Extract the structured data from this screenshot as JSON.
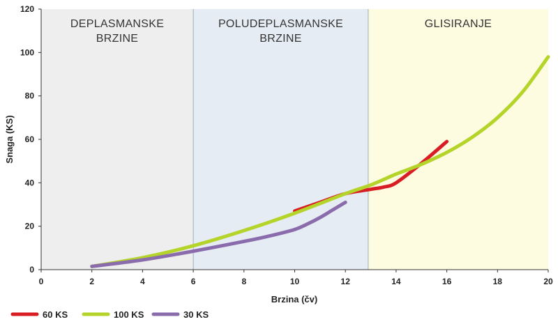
{
  "chart_data": {
    "type": "line",
    "xlabel": "Brzina (čv)",
    "ylabel": "Snaga (KS)",
    "xlim": [
      0,
      20
    ],
    "ylim": [
      0,
      120
    ],
    "xticks": [
      0,
      2,
      4,
      6,
      8,
      10,
      12,
      14,
      16,
      18,
      20
    ],
    "yticks": [
      0,
      20,
      40,
      60,
      80,
      100,
      120
    ],
    "grid": false,
    "legend_position": "bottom-left",
    "regions": [
      {
        "label_lines": [
          "DEPLASMANSKE",
          "BRZINE"
        ],
        "x_from": 0,
        "x_to": 6,
        "color": "#eeeeee"
      },
      {
        "label_lines": [
          "POLUDEPLASMANSKE",
          "BRZINE"
        ],
        "x_from": 6,
        "x_to": 12.9,
        "color": "#e6ecf3"
      },
      {
        "label_lines": [
          "GLISIRANJE"
        ],
        "x_from": 12.9,
        "x_to": 20,
        "color": "#fdfbe0"
      }
    ],
    "series": [
      {
        "name": "60 KS",
        "color": "#d81e24",
        "x": [
          10,
          11,
          12,
          13,
          13.5,
          14,
          15,
          16
        ],
        "y": [
          27,
          31,
          35,
          37,
          38,
          40,
          49,
          59
        ]
      },
      {
        "name": "100 KS",
        "color": "#b5d42a",
        "x": [
          2,
          4,
          6,
          8,
          10,
          12,
          13,
          14,
          15,
          16,
          17,
          18,
          19,
          20
        ],
        "y": [
          1.5,
          5.5,
          11,
          18,
          26,
          35,
          39,
          44,
          48.5,
          54,
          61,
          70,
          82,
          98
        ]
      },
      {
        "name": "30 KS",
        "color": "#8a6cad",
        "x": [
          2,
          4,
          6,
          8,
          9,
          10,
          10.5,
          11,
          11.5,
          12
        ],
        "y": [
          1.5,
          4.5,
          8.5,
          13,
          15.5,
          18.5,
          21,
          24,
          27.5,
          31
        ]
      }
    ]
  }
}
